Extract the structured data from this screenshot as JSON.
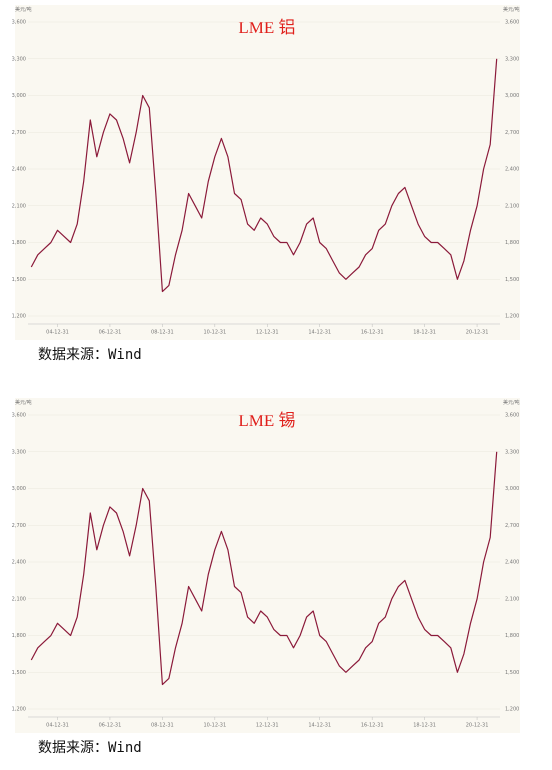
{
  "chart_data": [
    {
      "type": "line",
      "title": "LME 铝",
      "y_unit": "美元/吨",
      "source": "数据来源：Wind",
      "color": "#8b1a3a",
      "categories": [
        null,
        null,
        null,
        null,
        "04-12-31",
        null,
        null,
        null,
        null,
        null,
        null,
        null,
        "06-12-31",
        null,
        null,
        null,
        null,
        null,
        null,
        null,
        "08-12-31",
        null,
        null,
        null,
        null,
        null,
        null,
        null,
        "10-12-31",
        null,
        null,
        null,
        null,
        null,
        null,
        null,
        "12-12-31",
        null,
        null,
        null,
        null,
        null,
        null,
        null,
        "14-12-31",
        null,
        null,
        null,
        null,
        null,
        null,
        null,
        "16-12-31",
        null,
        null,
        null,
        null,
        null,
        null,
        null,
        "18-12-31",
        null,
        null,
        null,
        null,
        null,
        null,
        null,
        "20-12-31",
        null,
        null,
        null
      ],
      "values": [
        1600,
        1700,
        1750,
        1800,
        1900,
        1850,
        1800,
        1950,
        2300,
        2800,
        2500,
        2700,
        2850,
        2800,
        2650,
        2450,
        2700,
        3000,
        2900,
        2200,
        1400,
        1450,
        1700,
        1900,
        2200,
        2100,
        2000,
        2300,
        2500,
        2650,
        2500,
        2200,
        2150,
        1950,
        1900,
        2000,
        1950,
        1850,
        1800,
        1800,
        1700,
        1800,
        1950,
        2000,
        1800,
        1750,
        1650,
        1550,
        1500,
        1550,
        1600,
        1700,
        1750,
        1900,
        1950,
        2100,
        2200,
        2250,
        2100,
        1950,
        1850,
        1800,
        1800,
        1750,
        1700,
        1500,
        1650,
        1900,
        2100,
        2400,
        2600,
        3300
      ],
      "ylim": [
        1200,
        3600
      ],
      "yticks": [
        {
          "value": 1200,
          "label": "1,200"
        },
        {
          "value": 1500,
          "label": "1,500"
        },
        {
          "value": 1800,
          "label": "1,800"
        },
        {
          "value": 2100,
          "label": "2,100"
        },
        {
          "value": 2400,
          "label": "2,400"
        },
        {
          "value": 2700,
          "label": "2,700"
        },
        {
          "value": 3000,
          "label": "3,000"
        },
        {
          "value": 3300,
          "label": "3,300"
        },
        {
          "value": 3600,
          "label": "3,600"
        }
      ],
      "grid": true
    },
    {
      "type": "line",
      "title": "LME 锡",
      "y_unit": "美元/吨",
      "source": "数据来源：Wind",
      "color": "#8b1a3a",
      "categories": [
        null,
        null,
        null,
        null,
        "04-12-31",
        null,
        null,
        null,
        null,
        null,
        null,
        null,
        "06-12-31",
        null,
        null,
        null,
        null,
        null,
        null,
        null,
        "08-12-31",
        null,
        null,
        null,
        null,
        null,
        null,
        null,
        "10-12-31",
        null,
        null,
        null,
        null,
        null,
        null,
        null,
        "12-12-31",
        null,
        null,
        null,
        null,
        null,
        null,
        null,
        "14-12-31",
        null,
        null,
        null,
        null,
        null,
        null,
        null,
        "16-12-31",
        null,
        null,
        null,
        null,
        null,
        null,
        null,
        "18-12-31",
        null,
        null,
        null,
        null,
        null,
        null,
        null,
        "20-12-31",
        null,
        null,
        null
      ],
      "values": [
        1600,
        1700,
        1750,
        1800,
        1900,
        1850,
        1800,
        1950,
        2300,
        2800,
        2500,
        2700,
        2850,
        2800,
        2650,
        2450,
        2700,
        3000,
        2900,
        2200,
        1400,
        1450,
        1700,
        1900,
        2200,
        2100,
        2000,
        2300,
        2500,
        2650,
        2500,
        2200,
        2150,
        1950,
        1900,
        2000,
        1950,
        1850,
        1800,
        1800,
        1700,
        1800,
        1950,
        2000,
        1800,
        1750,
        1650,
        1550,
        1500,
        1550,
        1600,
        1700,
        1750,
        1900,
        1950,
        2100,
        2200,
        2250,
        2100,
        1950,
        1850,
        1800,
        1800,
        1750,
        1700,
        1500,
        1650,
        1900,
        2100,
        2400,
        2600,
        3300
      ],
      "ylim": [
        1200,
        3600
      ],
      "yticks": [
        {
          "value": 1200,
          "label": "1,200"
        },
        {
          "value": 1500,
          "label": "1,500"
        },
        {
          "value": 1800,
          "label": "1,800"
        },
        {
          "value": 2100,
          "label": "2,100"
        },
        {
          "value": 2400,
          "label": "2,400"
        },
        {
          "value": 2700,
          "label": "2,700"
        },
        {
          "value": 3000,
          "label": "3,000"
        },
        {
          "value": 3300,
          "label": "3,300"
        },
        {
          "value": 3600,
          "label": "3,600"
        }
      ],
      "grid": true
    }
  ]
}
